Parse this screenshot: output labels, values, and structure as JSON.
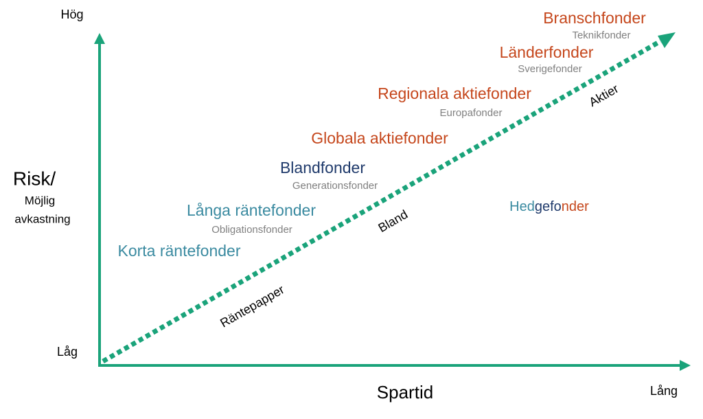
{
  "axes": {
    "y_high": "Hög",
    "y_low": "Låg",
    "y_title": "Risk/",
    "y_subtitle_lines": [
      "Möjlig",
      "avkastning"
    ],
    "x_title": "Spartid",
    "x_high": "Lång"
  },
  "funds": [
    {
      "name": "Branschfonder",
      "example": "Teknikfonder"
    },
    {
      "name": "Länderfonder",
      "example": "Sverigefonder"
    },
    {
      "name": "Regionala aktiefonder",
      "example": "Europafonder"
    },
    {
      "name": "Globala aktiefonder"
    },
    {
      "name": "Blandfonder",
      "example": "Generationsfonder"
    },
    {
      "name": "Långa räntefonder",
      "example": "Obligationsfonder"
    },
    {
      "name": "Korta räntefonder"
    }
  ],
  "hedge": {
    "parts": [
      "Hed",
      "gefo",
      "nder"
    ]
  },
  "zones": [
    "Räntepapper",
    "Bland",
    "Aktier"
  ]
}
